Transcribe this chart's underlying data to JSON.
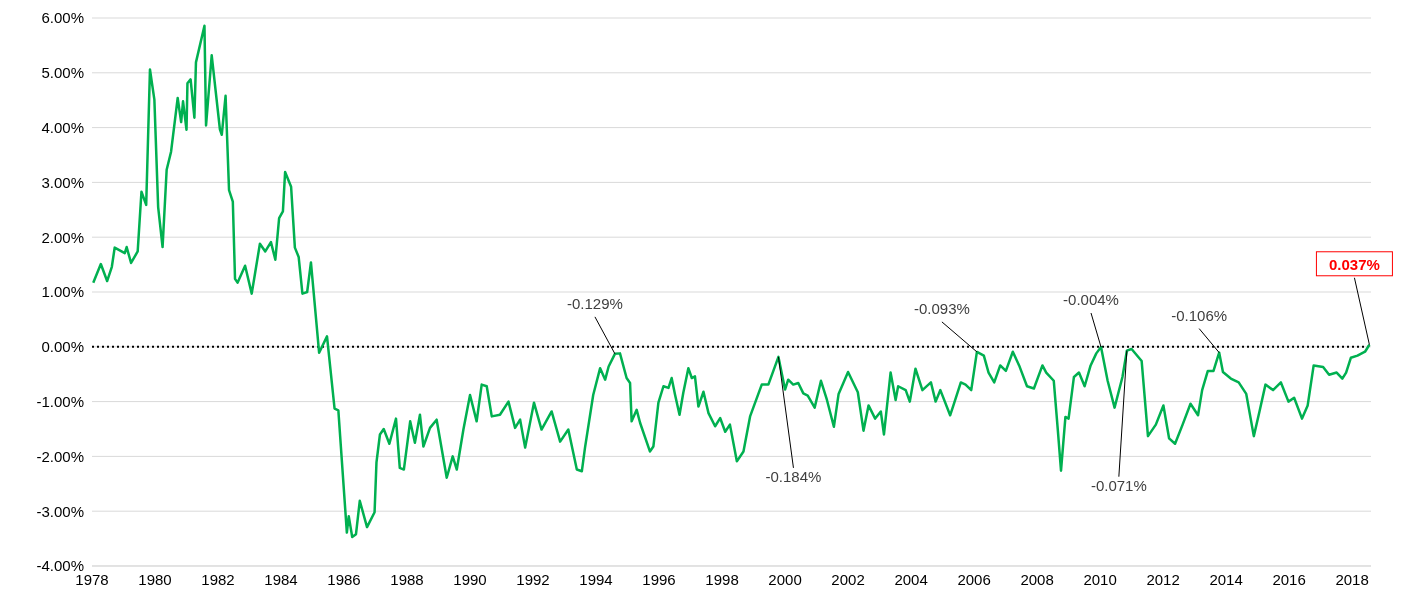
{
  "chart_data": {
    "type": "line",
    "x": [
      1978.04,
      1978.28,
      1978.48,
      1978.63,
      1978.72,
      1979.04,
      1979.1,
      1979.24,
      1979.45,
      1979.57,
      1979.72,
      1979.84,
      1979.98,
      1980.1,
      1980.24,
      1980.37,
      1980.51,
      1980.72,
      1980.83,
      1980.89,
      1981.0,
      1981.03,
      1981.13,
      1981.25,
      1981.3,
      1981.57,
      1981.62,
      1981.8,
      1982.06,
      1982.12,
      1982.24,
      1982.35,
      1982.47,
      1982.54,
      1982.62,
      1982.86,
      1983.07,
      1983.33,
      1983.5,
      1983.68,
      1983.82,
      1983.94,
      1984.06,
      1984.13,
      1984.32,
      1984.44,
      1984.56,
      1984.68,
      1984.83,
      1984.95,
      1985.21,
      1985.46,
      1985.7,
      1985.82,
      1986.09,
      1986.15,
      1986.26,
      1986.38,
      1986.5,
      1986.73,
      1986.97,
      1987.03,
      1987.14,
      1987.26,
      1987.44,
      1987.65,
      1987.77,
      1987.9,
      1988.1,
      1988.25,
      1988.41,
      1988.52,
      1988.73,
      1988.94,
      1989.26,
      1989.45,
      1989.58,
      1989.79,
      1990.0,
      1990.21,
      1990.37,
      1990.53,
      1990.69,
      1990.95,
      1991.22,
      1991.43,
      1991.59,
      1991.75,
      1992.03,
      1992.27,
      1992.59,
      1992.86,
      1993.12,
      1993.39,
      1993.55,
      1993.65,
      1993.91,
      1994.13,
      1994.29,
      1994.4,
      1994.6,
      1994.76,
      1994.97,
      1995.08,
      1995.13,
      1995.29,
      1995.4,
      1995.71,
      1995.82,
      1995.98,
      1996.14,
      1996.3,
      1996.4,
      1996.51,
      1996.65,
      1996.77,
      1996.93,
      1997.04,
      1997.14,
      1997.25,
      1997.41,
      1997.57,
      1997.78,
      1997.94,
      1998.1,
      1998.25,
      1998.47,
      1998.68,
      1998.89,
      1999.26,
      1999.47,
      1999.79,
      2000.0,
      2000.1,
      2000.26,
      2000.42,
      2000.58,
      2000.72,
      2000.94,
      2001.14,
      2001.33,
      2001.55,
      2001.7,
      2002.0,
      2002.31,
      2002.49,
      2002.65,
      2002.86,
      2003.04,
      2003.14,
      2003.35,
      2003.51,
      2003.59,
      2003.83,
      2003.96,
      2004.14,
      2004.36,
      2004.63,
      2004.78,
      2004.93,
      2005.24,
      2005.36,
      2005.58,
      2005.73,
      2005.91,
      2006.09,
      2006.31,
      2006.46,
      2006.64,
      2006.83,
      2007.01,
      2007.23,
      2007.43,
      2007.68,
      2007.9,
      2008.17,
      2008.29,
      2008.53,
      2008.66,
      2008.76,
      2008.9,
      2009.0,
      2009.17,
      2009.33,
      2009.51,
      2009.7,
      2009.88,
      2010.03,
      2010.24,
      2010.46,
      2010.71,
      2010.85,
      2011.0,
      2011.32,
      2011.52,
      2011.77,
      2012.01,
      2012.19,
      2012.38,
      2012.62,
      2012.87,
      2013.11,
      2013.24,
      2013.42,
      2013.6,
      2013.78,
      2013.9,
      2014.15,
      2014.4,
      2014.64,
      2014.88,
      2015.06,
      2015.25,
      2015.49,
      2015.74,
      2015.98,
      2016.16,
      2016.41,
      2016.59,
      2016.78,
      2017.08,
      2017.27,
      2017.51,
      2017.69,
      2017.81,
      2017.96,
      2018.17,
      2018.41,
      2018.55
    ],
    "values": [
      1.17,
      1.51,
      1.2,
      1.46,
      1.81,
      1.71,
      1.82,
      1.53,
      1.74,
      2.83,
      2.59,
      5.06,
      4.51,
      2.55,
      1.82,
      3.23,
      3.56,
      4.54,
      4.1,
      4.48,
      3.96,
      4.81,
      4.88,
      4.18,
      5.19,
      5.86,
      4.04,
      5.32,
      3.97,
      3.87,
      4.58,
      2.86,
      2.65,
      1.24,
      1.17,
      1.48,
      0.97,
      1.88,
      1.74,
      1.91,
      1.59,
      2.35,
      2.47,
      3.19,
      2.92,
      1.81,
      1.64,
      0.97,
      1.0,
      1.54,
      -0.11,
      0.19,
      -1.13,
      -1.16,
      -3.39,
      -3.09,
      -3.47,
      -3.42,
      -2.81,
      -3.29,
      -3.02,
      -2.11,
      -1.6,
      -1.5,
      -1.77,
      -1.31,
      -2.21,
      -2.24,
      -1.36,
      -1.75,
      -1.24,
      -1.82,
      -1.48,
      -1.33,
      -2.39,
      -2.0,
      -2.24,
      -1.51,
      -0.88,
      -1.36,
      -0.69,
      -0.72,
      -1.27,
      -1.24,
      -1.0,
      -1.48,
      -1.33,
      -1.84,
      -1.02,
      -1.51,
      -1.18,
      -1.73,
      -1.51,
      -2.24,
      -2.27,
      -1.84,
      -0.88,
      -0.39,
      -0.6,
      -0.36,
      -0.129,
      -0.12,
      -0.57,
      -0.66,
      -1.36,
      -1.15,
      -1.39,
      -1.91,
      -1.82,
      -1.02,
      -0.72,
      -0.75,
      -0.57,
      -0.88,
      -1.24,
      -0.84,
      -0.39,
      -0.57,
      -0.54,
      -1.09,
      -0.82,
      -1.21,
      -1.45,
      -1.3,
      -1.55,
      -1.42,
      -2.09,
      -1.91,
      -1.27,
      -0.69,
      -0.69,
      -0.184,
      -0.78,
      -0.6,
      -0.69,
      -0.66,
      -0.85,
      -0.89,
      -1.11,
      -0.62,
      -0.97,
      -1.46,
      -0.86,
      -0.46,
      -0.83,
      -1.53,
      -1.07,
      -1.31,
      -1.18,
      -1.6,
      -0.47,
      -0.97,
      -0.72,
      -0.79,
      -1.0,
      -0.4,
      -0.79,
      -0.65,
      -1.0,
      -0.79,
      -1.25,
      -1.04,
      -0.65,
      -0.69,
      -0.79,
      -0.093,
      -0.16,
      -0.47,
      -0.65,
      -0.34,
      -0.44,
      -0.09,
      -0.34,
      -0.72,
      -0.76,
      -0.34,
      -0.47,
      -0.62,
      -1.53,
      -2.26,
      -1.28,
      -1.31,
      -0.55,
      -0.47,
      -0.72,
      -0.34,
      -0.12,
      -0.004,
      -0.62,
      -1.11,
      -0.55,
      -0.071,
      -0.04,
      -0.26,
      -1.63,
      -1.42,
      -1.07,
      -1.67,
      -1.77,
      -1.42,
      -1.04,
      -1.25,
      -0.79,
      -0.44,
      -0.44,
      -0.106,
      -0.46,
      -0.58,
      -0.65,
      -0.86,
      -1.63,
      -1.18,
      -0.69,
      -0.79,
      -0.65,
      -1.0,
      -0.93,
      -1.31,
      -1.07,
      -0.34,
      -0.37,
      -0.51,
      -0.47,
      -0.58,
      -0.47,
      -0.2,
      -0.16,
      -0.09,
      0.037
    ],
    "color": "#00b050",
    "xlim": [
      1978,
      2018.6
    ],
    "xticks": [
      1978,
      1980,
      1982,
      1984,
      1986,
      1988,
      1990,
      1992,
      1994,
      1996,
      1998,
      2000,
      2002,
      2004,
      2006,
      2008,
      2010,
      2012,
      2014,
      2016,
      2018
    ],
    "ylim": [
      -4,
      6
    ],
    "yticks": [
      {
        "value": -4,
        "label": "-4.00%"
      },
      {
        "value": -3,
        "label": "-3.00%"
      },
      {
        "value": -2,
        "label": "-2.00%"
      },
      {
        "value": -1,
        "label": "-1.00%"
      },
      {
        "value": 0,
        "label": "0.00%"
      },
      {
        "value": 1,
        "label": "1.00%"
      },
      {
        "value": 2,
        "label": "2.00%"
      },
      {
        "value": 3,
        "label": "3.00%"
      },
      {
        "value": 4,
        "label": "4.00%"
      },
      {
        "value": 5,
        "label": "5.00%"
      },
      {
        "value": 6,
        "label": "6.00%"
      }
    ],
    "grid": "y",
    "marker": "none",
    "line_style": "solid",
    "ref_lines": [
      {
        "axis": "y",
        "value": 0,
        "color": "#000000",
        "line_style": "dotted"
      }
    ],
    "annotations": [
      {
        "text": "-0.129%",
        "x": 1994.6,
        "y": -0.129
      },
      {
        "text": "-0.184%",
        "x": 1999.79,
        "y": -0.184
      },
      {
        "text": "-0.093%",
        "x": 2006.09,
        "y": -0.093
      },
      {
        "text": "-0.004%",
        "x": 2010.03,
        "y": -0.004
      },
      {
        "text": "-0.071%",
        "x": 2010.85,
        "y": -0.071
      },
      {
        "text": "-0.106%",
        "x": 2013.78,
        "y": -0.106
      },
      {
        "text": "0.037%",
        "x": 2018.55,
        "y": 0.037
      }
    ]
  }
}
